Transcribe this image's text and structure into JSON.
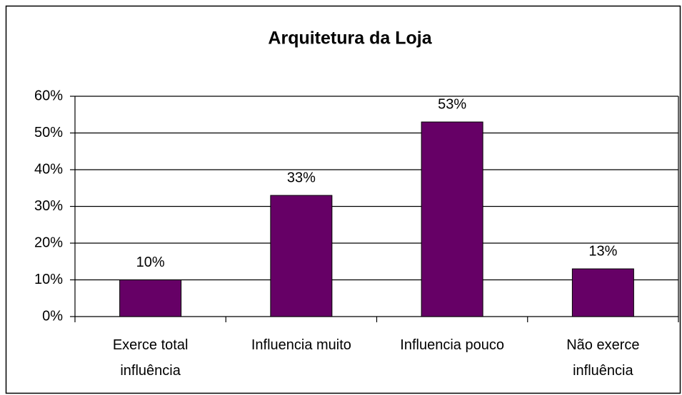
{
  "chart_data": {
    "type": "bar",
    "title": "Arquitetura da Loja",
    "categories": [
      "Exerce total influência",
      "Influencia muito",
      "Influencia pouco",
      "Não exerce influência"
    ],
    "values": [
      10,
      33,
      53,
      13
    ],
    "value_labels": [
      "10%",
      "33%",
      "53%",
      "13%"
    ],
    "color": "#660066",
    "ylim": [
      0,
      60
    ],
    "yticks": [
      {
        "value": 0,
        "label": "0%"
      },
      {
        "value": 10,
        "label": "10%"
      },
      {
        "value": 20,
        "label": "20%"
      },
      {
        "value": 30,
        "label": "30%"
      },
      {
        "value": 40,
        "label": "40%"
      },
      {
        "value": 50,
        "label": "50%"
      },
      {
        "value": 60,
        "label": "60%"
      }
    ],
    "grid": true
  }
}
